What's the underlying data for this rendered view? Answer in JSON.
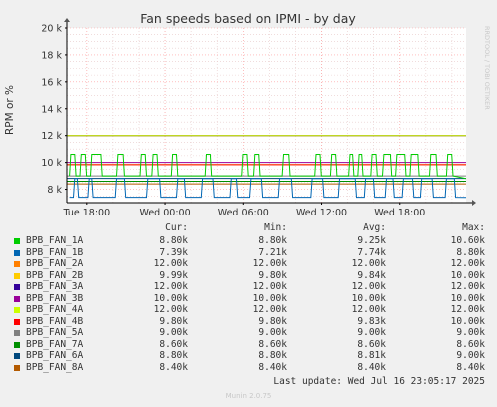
{
  "colors": {
    "background": "#f0f0f0",
    "plot_bg": "#ffffff",
    "grid_major": "#ff9a9a",
    "grid_minor": "#e6c8c8",
    "text": "#333333"
  },
  "legend_header": {
    "cur": "Cur:",
    "min": "Min:",
    "avg": "Avg:",
    "max": "Max:"
  },
  "legend_rows": [
    {
      "name": "BPB_FAN_1A",
      "color": "#00cc00",
      "cur": "8.80k",
      "min": "8.80k",
      "avg": "9.25k",
      "max": "10.60k"
    },
    {
      "name": "BPB_FAN_1B",
      "color": "#0066b3",
      "cur": "7.39k",
      "min": "7.21k",
      "avg": "7.74k",
      "max": "8.80k"
    },
    {
      "name": "BPB_FAN_2A",
      "color": "#ff8000",
      "cur": "12.00k",
      "min": "12.00k",
      "avg": "12.00k",
      "max": "12.00k"
    },
    {
      "name": "BPB_FAN_2B",
      "color": "#ffcc00",
      "cur": "9.99k",
      "min": "9.80k",
      "avg": "9.84k",
      "max": "10.00k"
    },
    {
      "name": "BPB_FAN_3A",
      "color": "#330099",
      "cur": "12.00k",
      "min": "12.00k",
      "avg": "12.00k",
      "max": "12.00k"
    },
    {
      "name": "BPB_FAN_3B",
      "color": "#990099",
      "cur": "10.00k",
      "min": "10.00k",
      "avg": "10.00k",
      "max": "10.00k"
    },
    {
      "name": "BPB_FAN_4A",
      "color": "#ccff00",
      "cur": "12.00k",
      "min": "12.00k",
      "avg": "12.00k",
      "max": "12.00k"
    },
    {
      "name": "BPB_FAN_4B",
      "color": "#ff0000",
      "cur": "9.80k",
      "min": "9.80k",
      "avg": "9.83k",
      "max": "10.00k"
    },
    {
      "name": "BPB_FAN_5A",
      "color": "#808080",
      "cur": "9.00k",
      "min": "9.00k",
      "avg": "9.00k",
      "max": "9.00k"
    },
    {
      "name": "BPB_FAN_7A",
      "color": "#008f00",
      "cur": "8.60k",
      "min": "8.60k",
      "avg": "8.60k",
      "max": "8.60k"
    },
    {
      "name": "BPB_FAN_6A",
      "color": "#00487d",
      "cur": "8.80k",
      "min": "8.80k",
      "avg": "8.81k",
      "max": "9.00k"
    },
    {
      "name": "BPB_FAN_8A",
      "color": "#b35a00",
      "cur": "8.40k",
      "min": "8.40k",
      "avg": "8.40k",
      "max": "8.40k"
    }
  ],
  "last_update": "Last update: Wed Jul 16 23:05:17 2025",
  "munin_version": "Munin 2.0.75",
  "chart_data": {
    "type": "line",
    "title": "Fan speeds based on IPMI - by day",
    "ylabel": "RPM or %",
    "watermark": "RRDTOOL / TOBI OETIKER",
    "ylim": [
      7000,
      20000
    ],
    "xlim_hours": [
      -30.6,
      0
    ],
    "y_ticks": [
      8000,
      10000,
      12000,
      14000,
      16000,
      18000,
      20000
    ],
    "y_tick_labels": [
      "8 k",
      "10 k",
      "12 k",
      "14 k",
      "16 k",
      "18 k",
      "20 k"
    ],
    "x_ticks": [
      -29.08,
      -23.08,
      -17.08,
      -11.08,
      -5.08
    ],
    "x_tick_labels": [
      "Tue 18:00",
      "Wed 00:00",
      "Wed 06:00",
      "Wed 12:00",
      "Wed 18:00"
    ],
    "grid": true,
    "series": [
      {
        "name": "BPB_FAN_2A",
        "color": "#ff8000",
        "flat": 12000
      },
      {
        "name": "BPB_FAN_3A",
        "color": "#330099",
        "flat": 12000
      },
      {
        "name": "BPB_FAN_4A",
        "color": "#ccff00",
        "flat": 12000
      },
      {
        "name": "BPB_FAN_3B",
        "color": "#990099",
        "flat": 10000
      },
      {
        "name": "BPB_FAN_2B",
        "color": "#ffcc00",
        "flat": 9840
      },
      {
        "name": "BPB_FAN_4B",
        "color": "#ff0000",
        "flat": 9830
      },
      {
        "name": "BPB_FAN_5A",
        "color": "#808080",
        "flat": 9000
      },
      {
        "name": "BPB_FAN_6A",
        "color": "#00487d",
        "flat": 8810
      },
      {
        "name": "BPB_FAN_7A",
        "color": "#008f00",
        "flat": 8600
      },
      {
        "name": "BPB_FAN_8A",
        "color": "#b35a00",
        "flat": 8400
      },
      {
        "name": "BPB_FAN_1A",
        "color": "#00cc00",
        "x": [
          -30.4,
          -30.3,
          -30.0,
          -29.9,
          -29.6,
          -29.5,
          -29.2,
          -29.1,
          -28.8,
          -28.7,
          -28.5,
          -28.4,
          -28.0,
          -27.9,
          -27.5,
          -27.4,
          -26.8,
          -26.7,
          -26.3,
          -26.2,
          -25.0,
          -24.9,
          -24.6,
          -24.5,
          -24.1,
          -24.0,
          -23.7,
          -23.6,
          -22.6,
          -22.5,
          -22.2,
          -22.1,
          -20.0,
          -19.9,
          -19.6,
          -19.5,
          -17.2,
          -17.1,
          -16.8,
          -16.7,
          -16.3,
          -16.2,
          -15.9,
          -15.8,
          -14.1,
          -14.0,
          -13.6,
          -13.5,
          -11.6,
          -11.5,
          -11.2,
          -11.1,
          -10.4,
          -10.3,
          -10.0,
          -9.9,
          -9.0,
          -8.9,
          -8.7,
          -8.6,
          -8.3,
          -8.2,
          -8.0,
          -7.9,
          -7.3,
          -7.2,
          -6.9,
          -6.8,
          -6.4,
          -6.3,
          -5.8,
          -5.7,
          -5.4,
          -5.3,
          -4.7,
          -4.6,
          -4.3,
          -4.2,
          -3.7,
          -3.6,
          -2.8,
          -2.7,
          -2.3,
          -2.2,
          -1.5,
          -1.4,
          -1.1,
          -1.0,
          0
        ],
        "y": [
          9000,
          10600,
          10600,
          9000,
          9000,
          10600,
          10600,
          9000,
          9000,
          10600,
          10600,
          10600,
          10600,
          9000,
          9000,
          9000,
          9000,
          10600,
          10600,
          9000,
          9000,
          10600,
          10600,
          9000,
          9000,
          10600,
          10600,
          9000,
          9000,
          10600,
          10600,
          9000,
          9000,
          10600,
          10600,
          9000,
          9000,
          10600,
          10600,
          9000,
          9000,
          10600,
          10600,
          9000,
          9000,
          10600,
          10600,
          9000,
          9000,
          10600,
          10600,
          9000,
          9000,
          10600,
          10600,
          9000,
          9000,
          10600,
          10600,
          9000,
          9000,
          10600,
          10600,
          9000,
          9000,
          10600,
          10600,
          9000,
          9000,
          10600,
          10600,
          9000,
          9000,
          10600,
          10600,
          9000,
          9000,
          10600,
          10600,
          9000,
          9000,
          10600,
          10600,
          9000,
          9000,
          10600,
          10600,
          9000,
          8800
        ]
      },
      {
        "name": "BPB_FAN_1B",
        "color": "#0066b3",
        "x": [
          -30.4,
          -30.1,
          -30.0,
          -29.8,
          -29.7,
          -29.0,
          -28.9,
          -28.7,
          -28.6,
          -26.9,
          -26.8,
          -26.2,
          -26.1,
          -24.5,
          -24.4,
          -23.5,
          -23.4,
          -22.2,
          -22.1,
          -21.6,
          -21.5,
          -20.3,
          -20.2,
          -19.4,
          -19.3,
          -18.1,
          -18.0,
          -17.6,
          -17.5,
          -16.6,
          -16.5,
          -15.7,
          -15.6,
          -14.4,
          -14.3,
          -13.4,
          -13.3,
          -11.9,
          -11.8,
          -11.0,
          -10.9,
          -9.8,
          -9.7,
          -8.5,
          -8.4,
          -7.8,
          -7.7,
          -7.1,
          -7.0,
          -6.2,
          -6.1,
          -5.6,
          -5.5,
          -4.9,
          -4.8,
          -4.1,
          -4.0,
          -3.5,
          -3.4,
          -2.6,
          -2.5,
          -1.6,
          -1.5,
          -0.9,
          -0.8,
          0
        ],
        "y": [
          7400,
          7400,
          8800,
          8800,
          7400,
          7400,
          8800,
          8800,
          7400,
          7400,
          8800,
          8800,
          7400,
          7400,
          8800,
          8800,
          7400,
          7400,
          8800,
          8800,
          7400,
          7400,
          8800,
          8800,
          7400,
          7400,
          8800,
          8800,
          7400,
          7400,
          8800,
          8800,
          7400,
          7400,
          8800,
          8800,
          7400,
          7400,
          8800,
          8800,
          7400,
          7400,
          8800,
          8800,
          7400,
          7400,
          8800,
          8800,
          7400,
          7400,
          8800,
          8800,
          7400,
          7400,
          8800,
          8800,
          7400,
          7400,
          8800,
          8800,
          7400,
          7400,
          8800,
          8800,
          7400,
          7390
        ]
      }
    ]
  }
}
